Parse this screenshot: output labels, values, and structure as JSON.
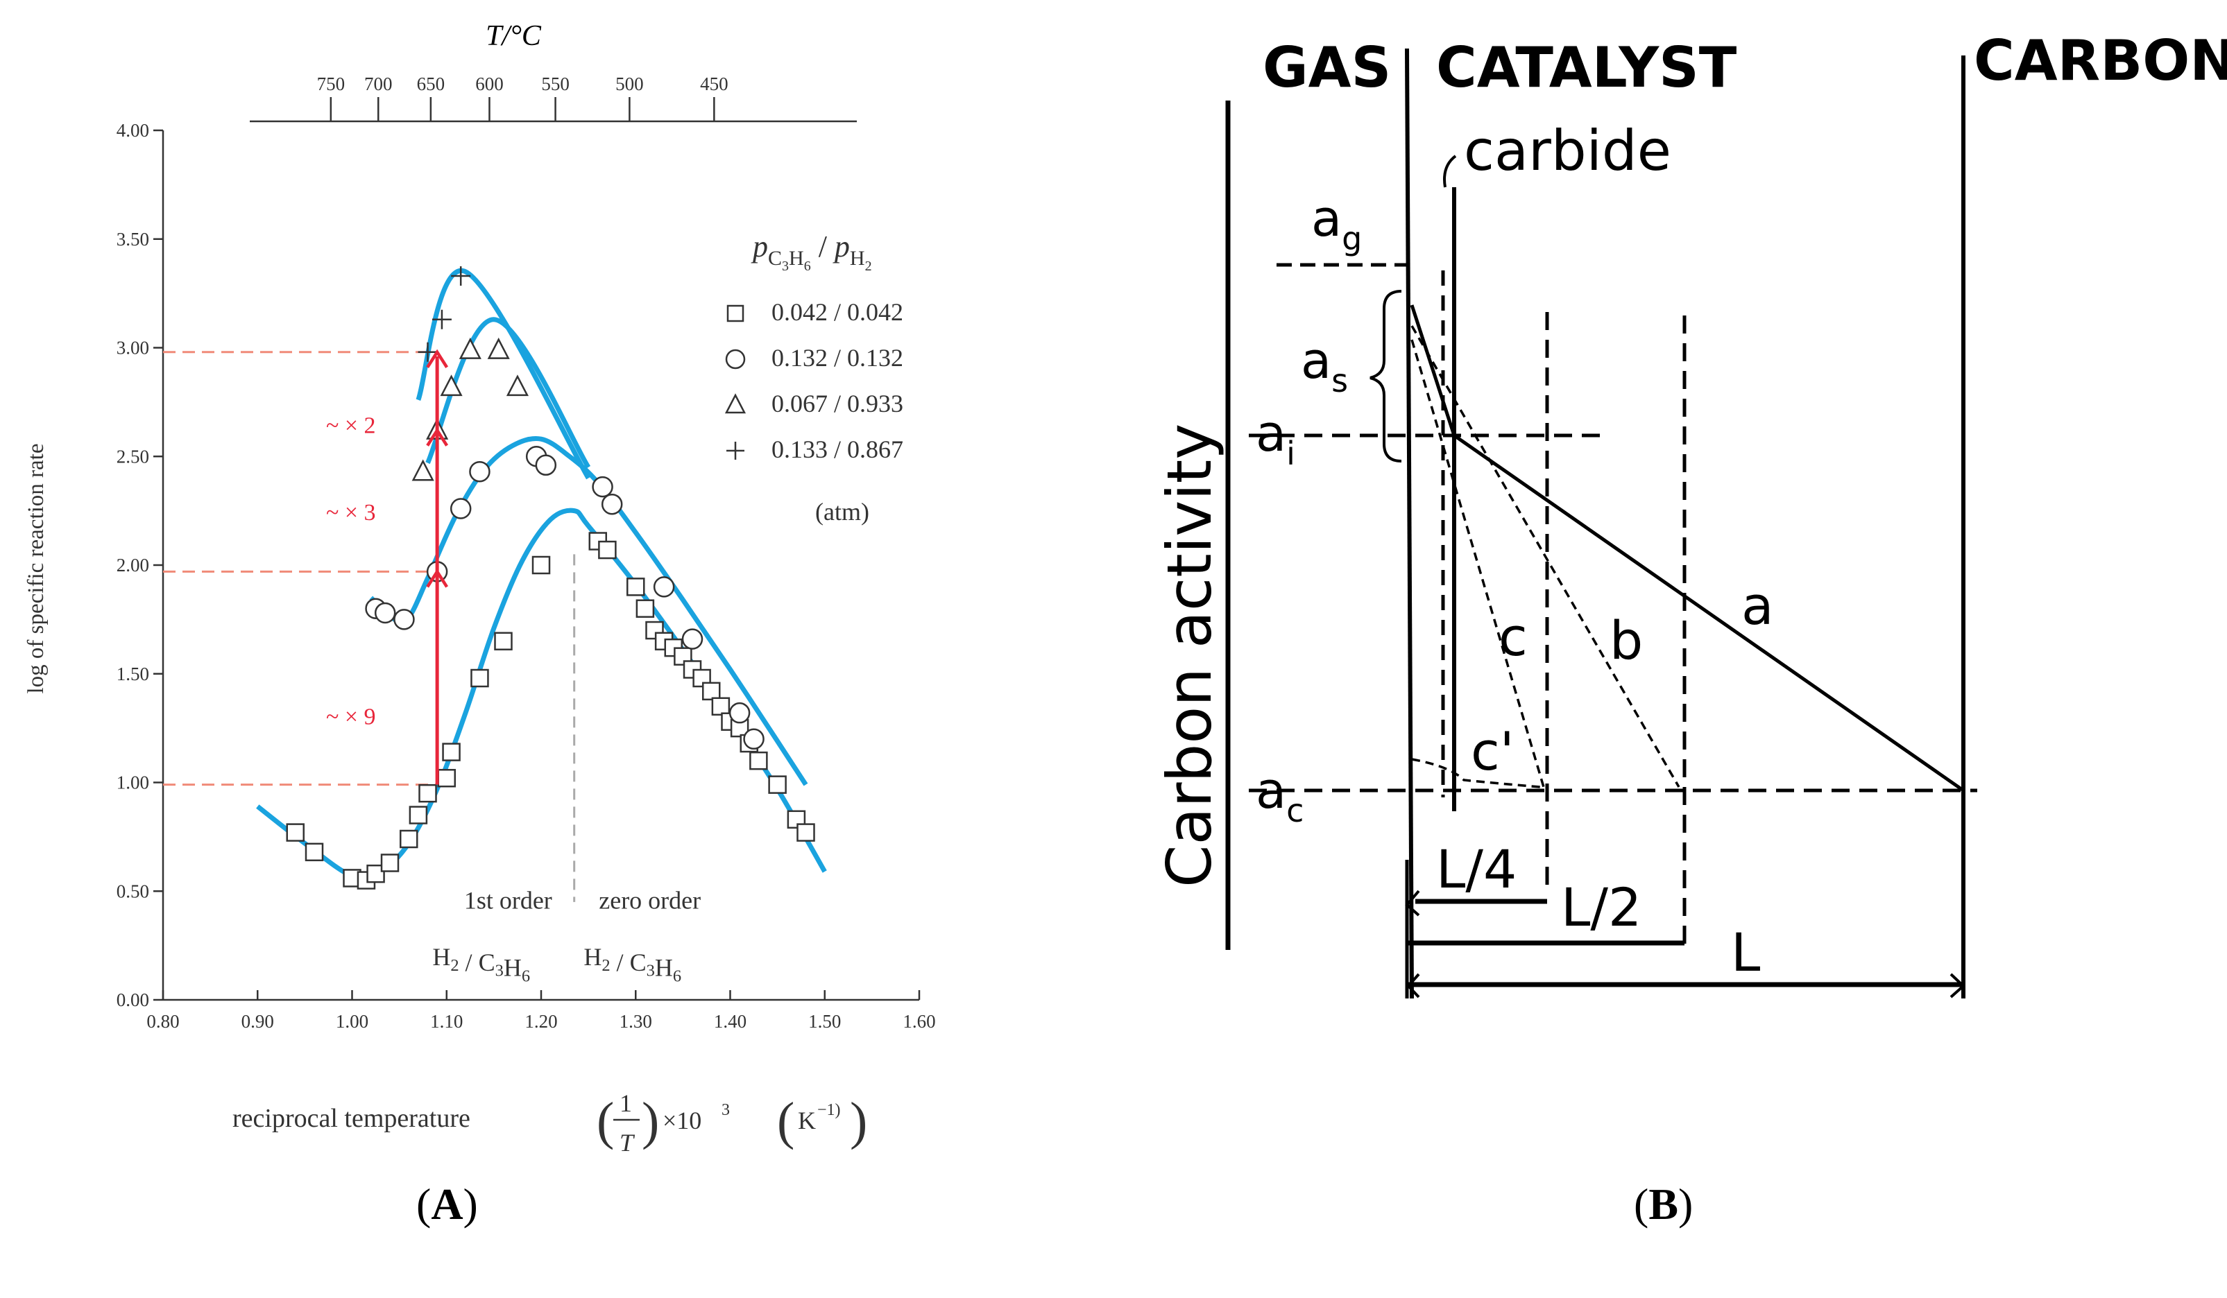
{
  "chart_data": [
    {
      "type": "scatter",
      "panel": "A",
      "title": "",
      "xlabel": "reciprocal temperature",
      "xlabel_expression": [
        "(",
        "1",
        "T",
        ")",
        "×10",
        "3",
        "(",
        "K",
        "−1",
        ")"
      ],
      "ylabel": "log of specific reaction rate",
      "xlim": [
        0.8,
        1.6
      ],
      "ylim": [
        0.0,
        4.0
      ],
      "x_ticks": [
        "0.80",
        "0.90",
        "1.00",
        "1.10",
        "1.20",
        "1.30",
        "1.40",
        "1.50",
        "1.60"
      ],
      "y_ticks": [
        "0.00",
        "0.50",
        "1.00",
        "1.50",
        "2.00",
        "2.50",
        "3.00",
        "3.50",
        "4.00"
      ],
      "top_axis": {
        "label": "T/°C",
        "ticks": [
          {
            "label": "750",
            "x": 0.9775
          },
          {
            "label": "700",
            "x": 1.0277
          },
          {
            "label": "650",
            "x": 1.0832
          },
          {
            "label": "600",
            "x": 1.1453
          },
          {
            "label": "550",
            "x": 1.2151
          },
          {
            "label": "500",
            "x": 1.2935
          },
          {
            "label": "450",
            "x": 1.383
          }
        ]
      },
      "legend": {
        "title": "pC3H6 / pH2",
        "title_parts": [
          "p",
          "C",
          "3",
          "H",
          "6",
          "/",
          "p",
          "H",
          "2"
        ],
        "unit": "(atm)",
        "entries": [
          {
            "marker": "square",
            "label": "0.042 / 0.042"
          },
          {
            "marker": "circle",
            "label": "0.132 / 0.132"
          },
          {
            "marker": "triangle",
            "label": "0.067 / 0.933"
          },
          {
            "marker": "plus",
            "label": "0.133 / 0.867"
          }
        ]
      },
      "series": [
        {
          "name": "0.042 / 0.042",
          "marker": "square",
          "x": [
            0.94,
            0.96,
            1.0,
            1.015,
            1.025,
            1.04,
            1.06,
            1.07,
            1.08,
            1.1,
            1.105,
            1.135,
            1.16,
            1.2,
            1.26,
            1.27,
            1.3,
            1.31,
            1.32,
            1.33,
            1.34,
            1.35,
            1.36,
            1.37,
            1.38,
            1.39,
            1.4,
            1.41,
            1.42,
            1.43,
            1.45,
            1.47,
            1.48
          ],
          "y": [
            0.77,
            0.68,
            0.56,
            0.55,
            0.58,
            0.63,
            0.74,
            0.85,
            0.95,
            1.02,
            1.14,
            1.48,
            1.65,
            2.0,
            2.11,
            2.07,
            1.9,
            1.8,
            1.7,
            1.65,
            1.62,
            1.58,
            1.52,
            1.48,
            1.42,
            1.35,
            1.28,
            1.25,
            1.18,
            1.1,
            0.99,
            0.83,
            0.77
          ]
        },
        {
          "name": "0.132 / 0.132",
          "marker": "circle",
          "x": [
            1.025,
            1.035,
            1.055,
            1.09,
            1.115,
            1.135,
            1.195,
            1.205,
            1.265,
            1.275,
            1.33,
            1.36,
            1.41,
            1.425
          ],
          "y": [
            1.8,
            1.78,
            1.75,
            1.97,
            2.26,
            2.43,
            2.5,
            2.46,
            2.36,
            2.28,
            1.9,
            1.66,
            1.32,
            1.2
          ]
        },
        {
          "name": "0.067 / 0.933",
          "marker": "triangle",
          "x": [
            1.075,
            1.09,
            1.105,
            1.125,
            1.155,
            1.175
          ],
          "y": [
            2.43,
            2.62,
            2.82,
            2.99,
            2.99,
            2.82
          ]
        },
        {
          "name": "0.133 / 0.867",
          "marker": "plus",
          "x": [
            1.08,
            1.095,
            1.115
          ],
          "y": [
            2.98,
            3.13,
            3.33
          ]
        }
      ],
      "fit_lines": [
        {
          "name": "fit 0.042/0.042",
          "x": [
            0.9,
            0.95,
            1.0,
            1.03,
            1.06,
            1.09,
            1.12,
            1.15,
            1.18,
            1.21,
            1.235,
            1.25,
            1.3,
            1.35,
            1.4,
            1.45,
            1.5
          ],
          "y": [
            0.89,
            0.72,
            0.57,
            0.59,
            0.72,
            0.97,
            1.32,
            1.71,
            2.02,
            2.21,
            2.25,
            2.18,
            1.91,
            1.61,
            1.3,
            0.97,
            0.59
          ]
        },
        {
          "name": "fit 0.132/0.132",
          "x": [
            1.02,
            1.045,
            1.06,
            1.08,
            1.11,
            1.14,
            1.17,
            1.2,
            1.23,
            1.26,
            1.3,
            1.35,
            1.4,
            1.45,
            1.48
          ],
          "y": [
            1.85,
            1.75,
            1.76,
            1.94,
            2.23,
            2.44,
            2.55,
            2.58,
            2.5,
            2.38,
            2.15,
            1.84,
            1.52,
            1.19,
            0.99
          ]
        },
        {
          "name": "fit 0.067/0.933",
          "x": [
            1.08,
            1.15,
            1.25
          ],
          "y": [
            2.47,
            3.13,
            2.45
          ]
        },
        {
          "name": "fit 0.133/0.867",
          "x": [
            1.07,
            1.12,
            1.25
          ],
          "y": [
            2.76,
            3.35,
            2.4
          ]
        }
      ],
      "annotations": {
        "order_divider_x": 1.235,
        "region_left": "1st order",
        "region_left_expr": [
          "H",
          "2",
          "/",
          "C",
          "3",
          "H",
          "6"
        ],
        "region_right": "zero order",
        "region_right_expr": [
          "H",
          "2",
          "/",
          "C",
          "3",
          "H",
          "6"
        ],
        "reference_levels": [
          2.98,
          1.97,
          0.99
        ],
        "arrow_x": 1.09,
        "arrow_marks_y": [
          1.97,
          2.62,
          2.98
        ],
        "factors": [
          {
            "text": "~ × 2",
            "y": 2.64
          },
          {
            "text": "~ × 3",
            "y": 2.24
          },
          {
            "text": "~ × 9",
            "y": 1.3
          }
        ],
        "colors": {
          "fit": "#1aa3df",
          "arrow": "#e8263a",
          "reference": "#f08a78",
          "divider": "#aaaaaa"
        }
      }
    },
    {
      "type": "diagram",
      "panel": "B",
      "column_headers": [
        "GAS",
        "CATALYST",
        "CARBON"
      ],
      "ylabel": "Carbon activity",
      "y_levels": [
        {
          "sym": "a",
          "sub": "g",
          "value": 1.25
        },
        {
          "sym": "a",
          "sub": "s",
          "value": 1.12
        },
        {
          "sym": "a",
          "sub": "i",
          "value": 1.0
        },
        {
          "sym": "a",
          "sub": "c",
          "value": 0.0
        }
      ],
      "phase_label": "carbide",
      "profile_curves": [
        "a",
        "b",
        "c",
        "c'"
      ],
      "distance_labels": [
        "L/4",
        "L/2",
        "L"
      ]
    }
  ],
  "panels": {
    "a_label": "A",
    "b_label": "B"
  }
}
